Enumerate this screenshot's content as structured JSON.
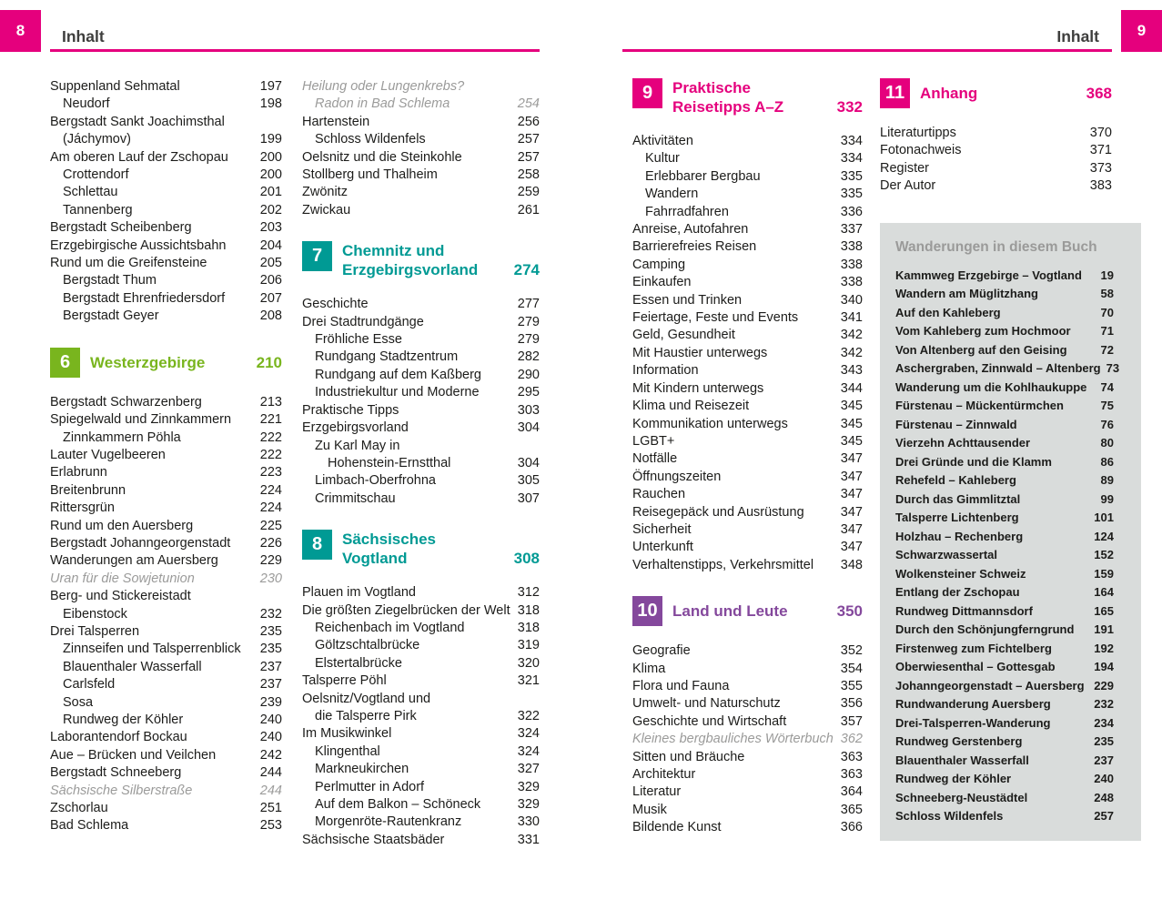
{
  "header": {
    "title": "Inhalt",
    "left_page_number": "8",
    "right_page_number": "9"
  },
  "colors": {
    "pink": "#e5007d",
    "green": "#79b51e",
    "teal": "#009a94",
    "purple": "#84489c",
    "italic_gray": "#9b9b9a",
    "box_bg": "#d9dcdb",
    "box_title": "#9a9a99"
  },
  "columns": [
    [
      {
        "text": "Suppenland Sehmatal",
        "page": "197",
        "indent": 0
      },
      {
        "text": "Neudorf",
        "page": "198",
        "indent": 1
      },
      {
        "text": "Bergstadt Sankt Joachimsthal",
        "page": "",
        "indent": 0
      },
      {
        "text": "(Jáchymov)",
        "page": "199",
        "indent": 1
      },
      {
        "text": "Am oberen Lauf der Zschopau",
        "page": "200",
        "indent": 0
      },
      {
        "text": "Crottendorf",
        "page": "200",
        "indent": 1
      },
      {
        "text": "Schlettau",
        "page": "201",
        "indent": 1
      },
      {
        "text": "Tannenberg",
        "page": "202",
        "indent": 1
      },
      {
        "text": "Bergstadt Scheibenberg",
        "page": "203",
        "indent": 0
      },
      {
        "text": "Erzgebirgische Aussichtsbahn",
        "page": "204",
        "indent": 0
      },
      {
        "text": "Rund um die Greifensteine",
        "page": "205",
        "indent": 0
      },
      {
        "text": "Bergstadt Thum",
        "page": "206",
        "indent": 1
      },
      {
        "text": "Bergstadt Ehrenfriedersdorf",
        "page": "207",
        "indent": 1
      },
      {
        "text": "Bergstadt Geyer",
        "page": "208",
        "indent": 1
      },
      {
        "type": "chapter",
        "num": "6",
        "lines": [
          "Westerzgebirge"
        ],
        "page": "210",
        "color": "green"
      },
      {
        "text": "Bergstadt Schwarzenberg",
        "page": "213",
        "indent": 0
      },
      {
        "text": "Spiegelwald und Zinnkammern",
        "page": "221",
        "indent": 0
      },
      {
        "text": "Zinnkammern Pöhla",
        "page": "222",
        "indent": 1
      },
      {
        "text": "Lauter Vugelbeeren",
        "page": "222",
        "indent": 0
      },
      {
        "text": "Erlabrunn",
        "page": "223",
        "indent": 0
      },
      {
        "text": "Breitenbrunn",
        "page": "224",
        "indent": 0
      },
      {
        "text": "Rittersgrün",
        "page": "224",
        "indent": 0
      },
      {
        "text": "Rund um den Auersberg",
        "page": "225",
        "indent": 0
      },
      {
        "text": "Bergstadt Johanngeorgenstadt",
        "page": "226",
        "indent": 0
      },
      {
        "text": "Wanderungen am Auersberg",
        "page": "229",
        "indent": 0
      },
      {
        "text": "Uran für die Sowjetunion",
        "page": "230",
        "indent": 0,
        "italic": true
      },
      {
        "text": "Berg- und Stickereistadt",
        "page": "",
        "indent": 0
      },
      {
        "text": "Eibenstock",
        "page": "232",
        "indent": 1
      },
      {
        "text": "Drei Talsperren",
        "page": "235",
        "indent": 0
      },
      {
        "text": "Zinnseifen und Talsperrenblick",
        "page": "235",
        "indent": 1
      },
      {
        "text": "Blauenthaler Wasserfall",
        "page": "237",
        "indent": 1
      },
      {
        "text": "Carlsfeld",
        "page": "237",
        "indent": 1
      },
      {
        "text": "Sosa",
        "page": "239",
        "indent": 1
      },
      {
        "text": "Rundweg der Köhler",
        "page": "240",
        "indent": 1
      },
      {
        "text": "Laborantendorf Bockau",
        "page": "240",
        "indent": 0
      },
      {
        "text": "Aue – Brücken und Veilchen",
        "page": "242",
        "indent": 0
      },
      {
        "text": "Bergstadt Schneeberg",
        "page": "244",
        "indent": 0
      },
      {
        "text": "Sächsische Silberstraße",
        "page": "244",
        "indent": 0,
        "italic": true
      },
      {
        "text": "Zschorlau",
        "page": "251",
        "indent": 0
      },
      {
        "text": "Bad Schlema",
        "page": "253",
        "indent": 0
      }
    ],
    [
      {
        "text": "Heilung oder Lungenkrebs?",
        "page": "",
        "indent": 0,
        "italic": true
      },
      {
        "text": "Radon in Bad Schlema",
        "page": "254",
        "indent": 1,
        "italic": true
      },
      {
        "text": "Hartenstein",
        "page": "256",
        "indent": 0
      },
      {
        "text": "Schloss Wildenfels",
        "page": "257",
        "indent": 1
      },
      {
        "text": "Oelsnitz und die Steinkohle",
        "page": "257",
        "indent": 0
      },
      {
        "text": "Stollberg und Thalheim",
        "page": "258",
        "indent": 0
      },
      {
        "text": "Zwönitz",
        "page": "259",
        "indent": 0
      },
      {
        "text": "Zwickau",
        "page": "261",
        "indent": 0
      },
      {
        "type": "chapter",
        "num": "7",
        "lines": [
          "Chemnitz und",
          "Erzgebirgsvorland"
        ],
        "page": "274",
        "color": "teal"
      },
      {
        "text": "Geschichte",
        "page": "277",
        "indent": 0
      },
      {
        "text": "Drei Stadtrundgänge",
        "page": "279",
        "indent": 0
      },
      {
        "text": "Fröhliche Esse",
        "page": "279",
        "indent": 1
      },
      {
        "text": "Rundgang Stadtzentrum",
        "page": "282",
        "indent": 1
      },
      {
        "text": "Rundgang auf dem Kaßberg",
        "page": "290",
        "indent": 1
      },
      {
        "text": "Industriekultur und Moderne",
        "page": "295",
        "indent": 1
      },
      {
        "text": "Praktische Tipps",
        "page": "303",
        "indent": 0
      },
      {
        "text": "Erzgebirgsvorland",
        "page": "304",
        "indent": 0
      },
      {
        "text": "Zu Karl May in",
        "page": "",
        "indent": 1
      },
      {
        "text": "Hohenstein-Ernstthal",
        "page": "304",
        "indent": 2
      },
      {
        "text": "Limbach-Oberfrohna",
        "page": "305",
        "indent": 1
      },
      {
        "text": "Crimmitschau",
        "page": "307",
        "indent": 1
      },
      {
        "type": "chapter",
        "num": "8",
        "lines": [
          "Sächsisches",
          "Vogtland"
        ],
        "page": "308",
        "color": "teal"
      },
      {
        "text": "Plauen im Vogtland",
        "page": "312",
        "indent": 0
      },
      {
        "text": "Die größten Ziegelbrücken der Welt",
        "page": "318",
        "indent": 0
      },
      {
        "text": "Reichenbach im Vogtland",
        "page": "318",
        "indent": 1
      },
      {
        "text": "Göltzschtalbrücke",
        "page": "319",
        "indent": 1
      },
      {
        "text": "Elstertalbrücke",
        "page": "320",
        "indent": 1
      },
      {
        "text": "Talsperre Pöhl",
        "page": "321",
        "indent": 0
      },
      {
        "text": "Oelsnitz/Vogtland und",
        "page": "",
        "indent": 0
      },
      {
        "text": "die Talsperre Pirk",
        "page": "322",
        "indent": 1
      },
      {
        "text": "Im Musikwinkel",
        "page": "324",
        "indent": 0
      },
      {
        "text": "Klingenthal",
        "page": "324",
        "indent": 1
      },
      {
        "text": "Markneukirchen",
        "page": "327",
        "indent": 1
      },
      {
        "text": "Perlmutter in Adorf",
        "page": "329",
        "indent": 1
      },
      {
        "text": "Auf dem Balkon – Schöneck",
        "page": "329",
        "indent": 1
      },
      {
        "text": "Morgenröte-Rautenkranz",
        "page": "330",
        "indent": 1
      },
      {
        "text": "Sächsische Staatsbäder",
        "page": "331",
        "indent": 0
      }
    ],
    [
      {
        "type": "chapter",
        "num": "9",
        "lines": [
          "Praktische",
          "Reisetipps A–Z"
        ],
        "page": "332",
        "color": "pink"
      },
      {
        "text": "Aktivitäten",
        "page": "334",
        "indent": 0
      },
      {
        "text": "Kultur",
        "page": "334",
        "indent": 1
      },
      {
        "text": "Erlebbarer Bergbau",
        "page": "335",
        "indent": 1
      },
      {
        "text": "Wandern",
        "page": "335",
        "indent": 1
      },
      {
        "text": "Fahrradfahren",
        "page": "336",
        "indent": 1
      },
      {
        "text": "Anreise, Autofahren",
        "page": "337",
        "indent": 0
      },
      {
        "text": "Barrierefreies Reisen",
        "page": "338",
        "indent": 0
      },
      {
        "text": "Camping",
        "page": "338",
        "indent": 0
      },
      {
        "text": "Einkaufen",
        "page": "338",
        "indent": 0
      },
      {
        "text": "Essen und Trinken",
        "page": "340",
        "indent": 0
      },
      {
        "text": "Feiertage, Feste und Events",
        "page": "341",
        "indent": 0
      },
      {
        "text": "Geld, Gesundheit",
        "page": "342",
        "indent": 0
      },
      {
        "text": "Mit Haustier unterwegs",
        "page": "342",
        "indent": 0
      },
      {
        "text": "Information",
        "page": "343",
        "indent": 0
      },
      {
        "text": "Mit Kindern unterwegs",
        "page": "344",
        "indent": 0
      },
      {
        "text": "Klima und Reisezeit",
        "page": "345",
        "indent": 0
      },
      {
        "text": "Kommunikation unterwegs",
        "page": "345",
        "indent": 0
      },
      {
        "text": "LGBT+",
        "page": "345",
        "indent": 0
      },
      {
        "text": "Notfälle",
        "page": "347",
        "indent": 0
      },
      {
        "text": "Öffnungszeiten",
        "page": "347",
        "indent": 0
      },
      {
        "text": "Rauchen",
        "page": "347",
        "indent": 0
      },
      {
        "text": "Reisegepäck und Ausrüstung",
        "page": "347",
        "indent": 0
      },
      {
        "text": "Sicherheit",
        "page": "347",
        "indent": 0
      },
      {
        "text": "Unterkunft",
        "page": "347",
        "indent": 0
      },
      {
        "text": "Verhaltenstipps, Verkehrsmittel",
        "page": "348",
        "indent": 0
      },
      {
        "type": "chapter",
        "num": "10",
        "lines": [
          "Land und Leute"
        ],
        "page": "350",
        "color": "purple"
      },
      {
        "text": "Geografie",
        "page": "352",
        "indent": 0
      },
      {
        "text": "Klima",
        "page": "354",
        "indent": 0
      },
      {
        "text": "Flora und Fauna",
        "page": "355",
        "indent": 0
      },
      {
        "text": "Umwelt- und Naturschutz",
        "page": "356",
        "indent": 0
      },
      {
        "text": "Geschichte und Wirtschaft",
        "page": "357",
        "indent": 0
      },
      {
        "text": "Kleines bergbauliches Wörterbuch",
        "page": "362",
        "indent": 0,
        "italic": true
      },
      {
        "text": "Sitten und Bräuche",
        "page": "363",
        "indent": 0
      },
      {
        "text": "Architektur",
        "page": "363",
        "indent": 0
      },
      {
        "text": "Literatur",
        "page": "364",
        "indent": 0
      },
      {
        "text": "Musik",
        "page": "365",
        "indent": 0
      },
      {
        "text": "Bildende Kunst",
        "page": "366",
        "indent": 0
      }
    ],
    [
      {
        "type": "chapter",
        "num": "11",
        "lines": [
          "Anhang"
        ],
        "page": "368",
        "color": "pink"
      },
      {
        "text": "Literaturtipps",
        "page": "370",
        "indent": 0
      },
      {
        "text": "Fotonachweis",
        "page": "371",
        "indent": 0
      },
      {
        "text": "Register",
        "page": "373",
        "indent": 0
      },
      {
        "text": "Der Autor",
        "page": "383",
        "indent": 0
      },
      {
        "type": "box",
        "title": "Wanderungen in diesem Buch",
        "entries": [
          {
            "text": "Kammweg Erzgebirge – Vogtland",
            "page": "19"
          },
          {
            "text": "Wandern am Müglitzhang",
            "page": "58"
          },
          {
            "text": "Auf den Kahleberg",
            "page": "70"
          },
          {
            "text": "Vom Kahleberg zum Hochmoor",
            "page": "71"
          },
          {
            "text": "Von Altenberg auf den Geising",
            "page": "72"
          },
          {
            "text": "Aschergraben, Zinnwald – Altenberg",
            "page": "73"
          },
          {
            "text": "Wanderung um die Kohlhaukuppe",
            "page": "74"
          },
          {
            "text": "Fürstenau – Mückentürmchen",
            "page": "75"
          },
          {
            "text": "Fürstenau – Zinnwald",
            "page": "76"
          },
          {
            "text": "Vierzehn Achttausender",
            "page": "80"
          },
          {
            "text": "Drei Gründe und die Klamm",
            "page": "86"
          },
          {
            "text": "Rehefeld – Kahleberg",
            "page": "89"
          },
          {
            "text": "Durch das Gimmlitztal",
            "page": "99"
          },
          {
            "text": "Talsperre Lichtenberg",
            "page": "101"
          },
          {
            "text": "Holzhau – Rechenberg",
            "page": "124"
          },
          {
            "text": "Schwarzwassertal",
            "page": "152"
          },
          {
            "text": "Wolkensteiner Schweiz",
            "page": "159"
          },
          {
            "text": "Entlang der Zschopau",
            "page": "164"
          },
          {
            "text": "Rundweg Dittmannsdorf",
            "page": "165"
          },
          {
            "text": "Durch den Schönjungferngrund",
            "page": "191"
          },
          {
            "text": "Firstenweg zum Fichtelberg",
            "page": "192"
          },
          {
            "text": "Oberwiesenthal – Gottesgab",
            "page": "194"
          },
          {
            "text": "Johanngeorgenstadt – Auersberg",
            "page": "229"
          },
          {
            "text": "Rundwanderung Auersberg",
            "page": "232"
          },
          {
            "text": "Drei-Talsperren-Wanderung",
            "page": "234"
          },
          {
            "text": "Rundweg Gerstenberg",
            "page": "235"
          },
          {
            "text": "Blauenthaler Wasserfall",
            "page": "237"
          },
          {
            "text": "Rundweg der Köhler",
            "page": "240"
          },
          {
            "text": "Schneeberg-Neustädtel",
            "page": "248"
          },
          {
            "text": "Schloss Wildenfels",
            "page": "257"
          }
        ]
      }
    ]
  ]
}
